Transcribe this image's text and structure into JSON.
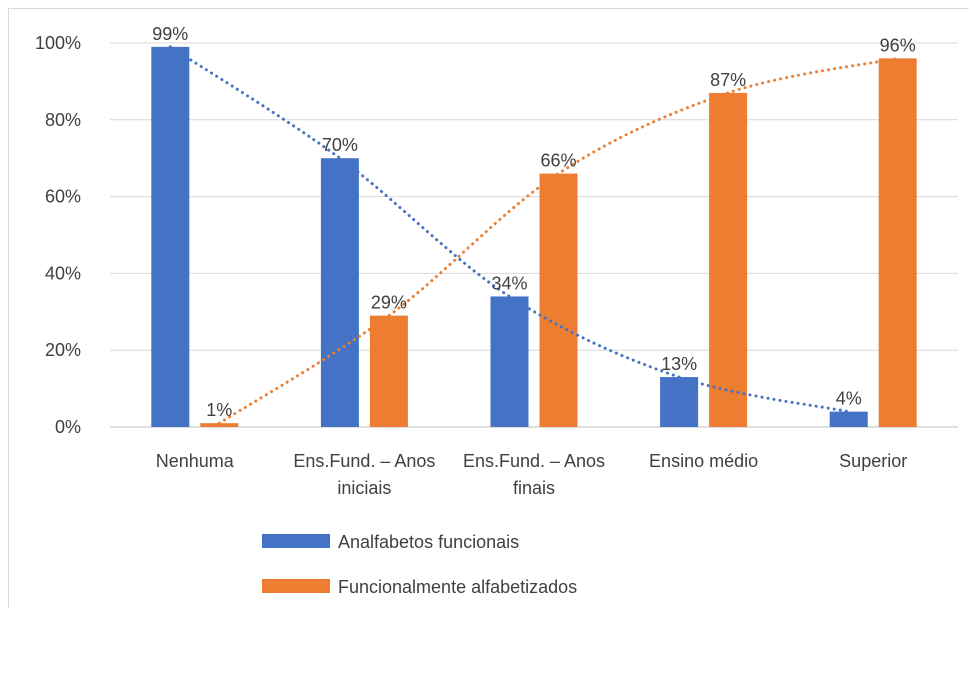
{
  "chart_data": {
    "type": "bar",
    "title": "",
    "xlabel": "",
    "ylabel": "",
    "ylim": [
      0,
      100
    ],
    "y_ticks": [
      "0%",
      "20%",
      "40%",
      "60%",
      "80%",
      "100%"
    ],
    "y_tick_values": [
      0,
      20,
      40,
      60,
      80,
      100
    ],
    "grid": true,
    "legend_position": "bottom",
    "categories": [
      [
        "Nenhuma"
      ],
      [
        "Ens.Fund. – Anos",
        "iniciais"
      ],
      [
        "Ens.Fund. – Anos",
        "finais"
      ],
      [
        "Ensino médio"
      ],
      [
        "Superior"
      ]
    ],
    "series": [
      {
        "name": "Analfabetos funcionais",
        "color": "#4472C4",
        "values": [
          99,
          70,
          34,
          13,
          4
        ],
        "labels": [
          "99%",
          "70%",
          "34%",
          "13%",
          "4%"
        ]
      },
      {
        "name": "Funcionalmente alfabetizados",
        "color": "#ED7D31",
        "values": [
          1,
          29,
          66,
          87,
          96
        ],
        "labels": [
          "1%",
          "29%",
          "66%",
          "87%",
          "96%"
        ]
      }
    ],
    "trendlines": [
      {
        "series": "Analfabetos funcionais",
        "style": "dotted",
        "color": "#4472C4"
      },
      {
        "series": "Funcionalmente alfabetizados",
        "style": "dotted",
        "color": "#ED7D31"
      }
    ]
  }
}
